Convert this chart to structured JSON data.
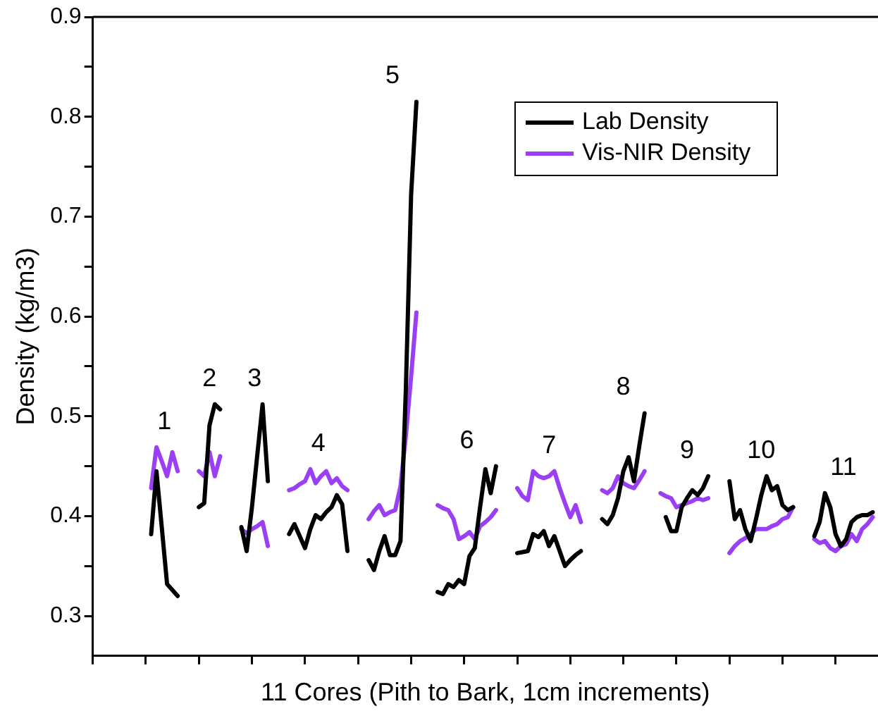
{
  "chart_data": {
    "type": "line",
    "xlabel": "11 Cores (Pith to Bark, 1cm increments)",
    "ylabel": "Density (kg/m3)",
    "categories": [
      null,
      null,
      null,
      null,
      null,
      null,
      null,
      null,
      null,
      null,
      null,
      null,
      null,
      null,
      null,
      null,
      null,
      null,
      null,
      null,
      null,
      null,
      null,
      null,
      null,
      null,
      null,
      null,
      null,
      null,
      null,
      null,
      null,
      null,
      null,
      null,
      null,
      null,
      null,
      null,
      null,
      null,
      null,
      null,
      null,
      null,
      null,
      null,
      null,
      null,
      null,
      null,
      null,
      null,
      null,
      null,
      null,
      null,
      null,
      null,
      null,
      null,
      null,
      null,
      null,
      null,
      null,
      null,
      null,
      null,
      null,
      null,
      null,
      null,
      null,
      null,
      null,
      null,
      null,
      null,
      null,
      null,
      null,
      null,
      null,
      null,
      null,
      null,
      null,
      null,
      null,
      null,
      null,
      null,
      null,
      null,
      null,
      null,
      null,
      null,
      null,
      null,
      null,
      null,
      null,
      null,
      null,
      null,
      null,
      null,
      null,
      null,
      null,
      null,
      null,
      null,
      null,
      null,
      null,
      null,
      null,
      null,
      null,
      null,
      null,
      null,
      null,
      null,
      null,
      null,
      null,
      null,
      null,
      null,
      null,
      null,
      null,
      null,
      null,
      null,
      null,
      null,
      null,
      null,
      null,
      null,
      null,
      null,
      null
    ],
    "ylim": [
      0.26,
      0.9
    ],
    "yticks": [
      0.3,
      {
        "value": 0.35,
        "label": null
      },
      0.4,
      {
        "value": 0.45,
        "label": null
      },
      0.5,
      {
        "value": 0.55,
        "label": null
      },
      0.6,
      {
        "value": 0.65,
        "label": null
      },
      0.7,
      {
        "value": 0.75,
        "label": null
      },
      0.8,
      {
        "value": 0.85,
        "label": null
      },
      0.9
    ],
    "tick_labels": "y",
    "grid": false,
    "legend": "top right",
    "marker": "none",
    "line_style": "solid",
    "series": [
      {
        "name": "Lab Density",
        "color": "#000000",
        "values": [
          null,
          null,
          null,
          null,
          null,
          null,
          null,
          null,
          null,
          null,
          null,
          0.382,
          0.445,
          0.389,
          0.332,
          0.326,
          0.32,
          null,
          null,
          null,
          0.409,
          0.413,
          0.491,
          0.512,
          0.507,
          null,
          null,
          null,
          0.389,
          0.365,
          0.409,
          0.461,
          0.512,
          0.435,
          null,
          null,
          null,
          0.382,
          0.392,
          0.38,
          0.368,
          0.387,
          0.401,
          0.397,
          0.404,
          0.409,
          0.421,
          0.412,
          0.365,
          null,
          null,
          null,
          0.356,
          0.346,
          0.365,
          0.38,
          0.361,
          0.361,
          0.375,
          0.526,
          0.722,
          0.815,
          null,
          null,
          null,
          0.324,
          0.322,
          0.332,
          0.329,
          0.336,
          0.332,
          0.36,
          0.368,
          0.409,
          0.447,
          0.423,
          0.45,
          null,
          null,
          null,
          0.363,
          0.364,
          0.365,
          0.382,
          0.379,
          0.385,
          0.37,
          0.38,
          0.365,
          0.35,
          0.356,
          0.361,
          0.365,
          null,
          null,
          null,
          0.397,
          0.392,
          0.401,
          0.418,
          0.445,
          0.459,
          0.435,
          0.47,
          0.503,
          null,
          null,
          null,
          0.399,
          0.385,
          0.385,
          0.409,
          0.418,
          0.426,
          0.421,
          0.428,
          0.44,
          null,
          null,
          null,
          0.435,
          0.397,
          0.406,
          0.387,
          0.375,
          0.397,
          0.421,
          0.44,
          0.426,
          0.43,
          0.411,
          0.406,
          0.409,
          null,
          null,
          null,
          0.38,
          0.394,
          0.423,
          0.409,
          0.382,
          0.37,
          0.377,
          0.394,
          0.399,
          0.401,
          0.401,
          0.404,
          null
        ]
      },
      {
        "name": "Vis-NIR Density",
        "color": "#9b3ff5",
        "values": [
          null,
          null,
          null,
          null,
          null,
          null,
          null,
          null,
          null,
          null,
          null,
          0.428,
          0.469,
          0.455,
          0.44,
          0.464,
          0.445,
          null,
          null,
          null,
          0.445,
          0.44,
          0.464,
          0.44,
          0.46,
          null,
          null,
          null,
          0.387,
          0.383,
          0.387,
          0.39,
          0.394,
          0.37,
          null,
          null,
          null,
          0.426,
          0.428,
          0.432,
          0.435,
          0.447,
          0.433,
          0.44,
          0.445,
          0.433,
          0.438,
          0.43,
          0.426,
          null,
          null,
          null,
          0.397,
          0.405,
          0.411,
          0.401,
          0.404,
          0.406,
          0.43,
          0.48,
          0.54,
          0.604,
          null,
          null,
          null,
          0.411,
          0.408,
          0.406,
          0.397,
          0.377,
          0.38,
          0.384,
          0.377,
          0.39,
          0.394,
          0.399,
          0.406,
          null,
          null,
          null,
          0.428,
          0.42,
          0.416,
          0.445,
          0.44,
          0.438,
          0.44,
          0.445,
          0.428,
          0.413,
          0.399,
          0.411,
          0.394,
          null,
          null,
          null,
          0.426,
          0.423,
          0.428,
          0.44,
          0.433,
          0.43,
          0.428,
          0.436,
          0.445,
          null,
          null,
          0.423,
          0.42,
          0.418,
          0.409,
          0.411,
          0.413,
          0.415,
          0.418,
          0.416,
          0.418,
          null,
          null,
          null,
          0.363,
          0.37,
          0.375,
          0.378,
          0.382,
          0.387,
          0.387,
          0.387,
          0.39,
          0.392,
          0.397,
          0.399,
          0.409,
          null,
          null,
          null,
          0.377,
          0.373,
          0.375,
          0.368,
          0.365,
          0.37,
          0.372,
          0.382,
          0.375,
          0.387,
          0.392,
          0.399,
          null
        ]
      }
    ],
    "annotations": [
      "1",
      "2",
      "3",
      "4",
      "5",
      "6",
      "7",
      "8",
      "9",
      "10",
      "11"
    ]
  }
}
